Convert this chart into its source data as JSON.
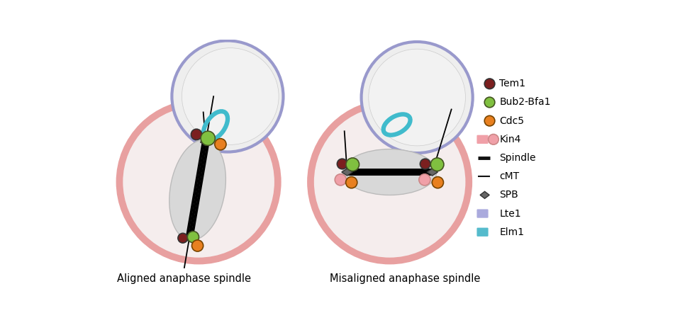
{
  "fig_width": 9.59,
  "fig_height": 4.66,
  "mother_fill": "#F5EDED",
  "mother_edge": "#E8A0A0",
  "mother_lw": 7,
  "daughter_fill": "#EEEEEE",
  "daughter_edge": "#9999CC",
  "daughter_lw": 3,
  "nucleus_fill": "#E5E5E5",
  "nucleus_edge": "#BBBBBB",
  "spindle_ellipse_fill": "#D8D8D8",
  "spindle_ellipse_edge": "#BBBBBB",
  "spb_color": "#666666",
  "tem1_color": "#7B1F1F",
  "bub2_color": "#80C040",
  "cdc5_color": "#E88020",
  "kin4_color": "#F0A0A8",
  "elm1_color": "#40BBCC",
  "spindle_color": "#000000",
  "cmt_color": "#000000",
  "legend_items": [
    {
      "label": "Tem1",
      "type": "circle",
      "color": "#7B1F1F",
      "ec": "#333333"
    },
    {
      "label": "Bub2-Bfa1",
      "type": "circle",
      "color": "#80C040",
      "ec": "#445522"
    },
    {
      "label": "Cdc5",
      "type": "circle",
      "color": "#E88020",
      "ec": "#774400"
    },
    {
      "label": "Kin4",
      "type": "circle_rect",
      "circle_color": "#F0A0A8",
      "rect_color": "#F0A0A8"
    },
    {
      "label": "Spindle",
      "type": "line",
      "color": "#111111",
      "lw": 3.5
    },
    {
      "label": "cMT",
      "type": "line",
      "color": "#111111",
      "lw": 1.5
    },
    {
      "label": "SPB",
      "type": "diamond",
      "color": "#666666"
    },
    {
      "label": "Lte1",
      "type": "rect",
      "color": "#AAAADD"
    },
    {
      "label": "Elm1",
      "type": "rect",
      "color": "#55BBCC"
    }
  ],
  "label_aligned": "Aligned anaphase spindle",
  "label_misaligned": "Misaligned anaphase spindle"
}
